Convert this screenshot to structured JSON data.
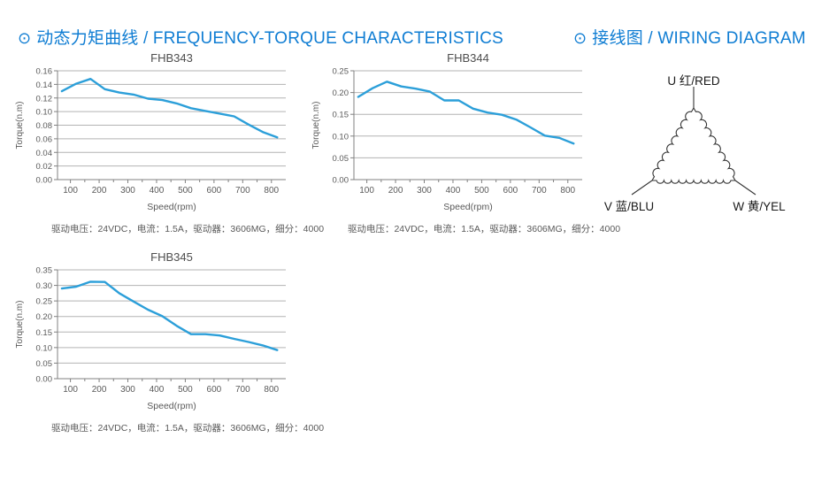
{
  "page": {
    "background": "#ffffff"
  },
  "headers": [
    {
      "bullet": "⊙",
      "text": "动态力矩曲线 / FREQUENCY-TORQUE CHARACTERISTICS"
    },
    {
      "bullet": "⊙",
      "text": "接线图 / WIRING DIAGRAM"
    }
  ],
  "colors": {
    "header_blue": "#0f7dd3",
    "line_blue": "#2c9fd9",
    "grid": "#b3b3b3",
    "axis": "#808080",
    "tick_text": "#595959",
    "title_text": "#4d4d4d",
    "wiring_stroke": "#333333"
  },
  "chart_data": [
    {
      "type": "line",
      "title": "FHB343",
      "xlabel": "Speed(rpm)",
      "ylabel": "Torque(n.m)",
      "x": [
        70,
        120,
        170,
        220,
        270,
        320,
        370,
        420,
        470,
        520,
        570,
        620,
        670,
        720,
        770,
        820
      ],
      "y": [
        0.13,
        0.141,
        0.148,
        0.133,
        0.128,
        0.125,
        0.119,
        0.117,
        0.112,
        0.105,
        0.101,
        0.097,
        0.093,
        0.081,
        0.07,
        0.062
      ],
      "ylim": [
        0,
        0.16
      ],
      "ystep": 0.02,
      "xlim": [
        55,
        850
      ],
      "xticks": [
        100,
        200,
        300,
        400,
        500,
        600,
        700,
        800
      ],
      "grid": "horizontal",
      "legend": "none",
      "line_color": "#2c9fd9",
      "caption": "驱动电压：24VDC，电流：1.5A，驱动器：3606MG，细分：4000"
    },
    {
      "type": "line",
      "title": "FHB344",
      "xlabel": "Speed(rpm)",
      "ylabel": "Torque(n.m)",
      "x": [
        70,
        120,
        170,
        220,
        270,
        320,
        370,
        420,
        470,
        520,
        570,
        620,
        670,
        720,
        770,
        820
      ],
      "y": [
        0.19,
        0.21,
        0.225,
        0.214,
        0.209,
        0.202,
        0.182,
        0.182,
        0.163,
        0.154,
        0.149,
        0.138,
        0.12,
        0.101,
        0.096,
        0.083
      ],
      "ylim": [
        0,
        0.25
      ],
      "ystep": 0.05,
      "xlim": [
        55,
        850
      ],
      "xticks": [
        100,
        200,
        300,
        400,
        500,
        600,
        700,
        800
      ],
      "grid": "horizontal",
      "legend": "none",
      "line_color": "#2c9fd9",
      "caption": "驱动电压：24VDC，电流：1.5A，驱动器：3606MG，细分：4000"
    },
    {
      "type": "line",
      "title": "FHB345",
      "xlabel": "Speed(rpm)",
      "ylabel": "Torque(n.m)",
      "x": [
        70,
        120,
        170,
        220,
        270,
        320,
        370,
        420,
        470,
        520,
        570,
        620,
        670,
        720,
        770,
        820
      ],
      "y": [
        0.29,
        0.296,
        0.312,
        0.311,
        0.275,
        0.248,
        0.222,
        0.201,
        0.17,
        0.143,
        0.143,
        0.139,
        0.128,
        0.118,
        0.107,
        0.092
      ],
      "ylim": [
        0,
        0.35
      ],
      "ystep": 0.05,
      "xlim": [
        55,
        850
      ],
      "xticks": [
        100,
        200,
        300,
        400,
        500,
        600,
        700,
        800
      ],
      "grid": "horizontal",
      "legend": "none",
      "line_color": "#2c9fd9",
      "caption": "驱动电压：24VDC，电流：1.5A，驱动器：3606MG，细分：4000"
    }
  ],
  "wiring": {
    "u": "U 红/RED",
    "v": "V 蓝/BLU",
    "w": "W 黄/YEL"
  }
}
